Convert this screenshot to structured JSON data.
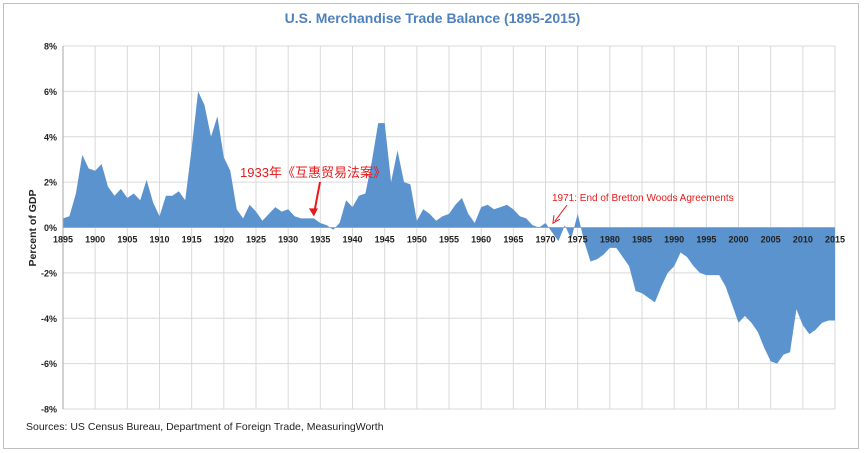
{
  "chart_data": {
    "type": "area",
    "title": "U.S. Merchandise Trade Balance (1895-2015)",
    "xlabel": "",
    "ylabel": "Percent of GDP",
    "xlim": [
      1895,
      2015
    ],
    "ylim": [
      -8,
      8
    ],
    "x_ticks": [
      1895,
      1900,
      1905,
      1910,
      1915,
      1920,
      1925,
      1930,
      1935,
      1940,
      1945,
      1950,
      1955,
      1960,
      1965,
      1970,
      1975,
      1980,
      1985,
      1990,
      1995,
      2000,
      2005,
      2010,
      2015
    ],
    "y_ticks": [
      8,
      6,
      4,
      2,
      0,
      -2,
      -4,
      -6,
      -8
    ],
    "y_tick_labels": [
      "8%",
      "6%",
      "4%",
      "2%",
      "0%",
      "-2%",
      "-4%",
      "-6%",
      "-8%"
    ],
    "grid": true,
    "fill_color": "#5b93cf",
    "series": [
      {
        "x": [
          1895,
          1896,
          1897,
          1898,
          1899,
          1900,
          1901,
          1902,
          1903,
          1904,
          1905,
          1906,
          1907,
          1908,
          1909,
          1910,
          1911,
          1912,
          1913,
          1914,
          1915,
          1916,
          1917,
          1918,
          1919,
          1920,
          1921,
          1922,
          1923,
          1924,
          1925,
          1926,
          1927,
          1928,
          1929,
          1930,
          1931,
          1932,
          1933,
          1934,
          1935,
          1936,
          1937,
          1938,
          1939,
          1940,
          1941,
          1942,
          1943,
          1944,
          1945,
          1946,
          1947,
          1948,
          1949,
          1950,
          1951,
          1952,
          1953,
          1954,
          1955,
          1956,
          1957,
          1958,
          1959,
          1960,
          1961,
          1962,
          1963,
          1964,
          1965,
          1966,
          1967,
          1968,
          1969,
          1970,
          1971,
          1972,
          1973,
          1974,
          1975,
          1976,
          1977,
          1978,
          1979,
          1980,
          1981,
          1982,
          1983,
          1984,
          1985,
          1986,
          1987,
          1988,
          1989,
          1990,
          1991,
          1992,
          1993,
          1994,
          1995,
          1996,
          1997,
          1998,
          1999,
          2000,
          2001,
          2002,
          2003,
          2004,
          2005,
          2006,
          2007,
          2008,
          2009,
          2010,
          2011,
          2012,
          2013,
          2014,
          2015
        ],
        "values": [
          0.4,
          0.5,
          1.5,
          3.2,
          2.6,
          2.5,
          2.8,
          1.8,
          1.4,
          1.7,
          1.3,
          1.5,
          1.2,
          2.1,
          1.1,
          0.5,
          1.4,
          1.4,
          1.6,
          1.2,
          3.5,
          6.0,
          5.4,
          4.0,
          4.9,
          3.1,
          2.5,
          0.8,
          0.4,
          1.0,
          0.7,
          0.3,
          0.6,
          0.9,
          0.7,
          0.8,
          0.5,
          0.4,
          0.4,
          0.4,
          0.2,
          0.1,
          -0.1,
          0.2,
          1.2,
          0.9,
          1.4,
          1.5,
          2.9,
          4.6,
          4.6,
          2.0,
          3.4,
          2.0,
          1.9,
          0.3,
          0.8,
          0.6,
          0.3,
          0.5,
          0.6,
          1.0,
          1.3,
          0.6,
          0.2,
          0.9,
          1.0,
          0.8,
          0.9,
          1.0,
          0.8,
          0.5,
          0.4,
          0.1,
          0.0,
          0.2,
          -0.2,
          -0.6,
          0.1,
          -0.5,
          0.6,
          -0.6,
          -1.5,
          -1.4,
          -1.2,
          -0.9,
          -0.9,
          -1.3,
          -1.7,
          -2.8,
          -2.9,
          -3.1,
          -3.3,
          -2.6,
          -2.0,
          -1.7,
          -1.1,
          -1.3,
          -1.7,
          -2.0,
          -2.1,
          -2.1,
          -2.1,
          -2.6,
          -3.4,
          -4.2,
          -3.9,
          -4.2,
          -4.6,
          -5.3,
          -5.9,
          -6.0,
          -5.6,
          -5.5,
          -3.6,
          -4.3,
          -4.7,
          -4.5,
          -4.2,
          -4.1,
          -4.1
        ]
      }
    ],
    "annotations": [
      {
        "text": "1933年《互惠贸易法案》",
        "x": 1934,
        "y": 0.4,
        "color": "#e8191a"
      },
      {
        "text": "1971: End of Bretton Woods Agreements",
        "x": 1971,
        "y": 0.1,
        "color": "#e8191a"
      }
    ],
    "source": "Sources: US Census Bureau, Department of Foreign Trade, MeasuringWorth"
  }
}
